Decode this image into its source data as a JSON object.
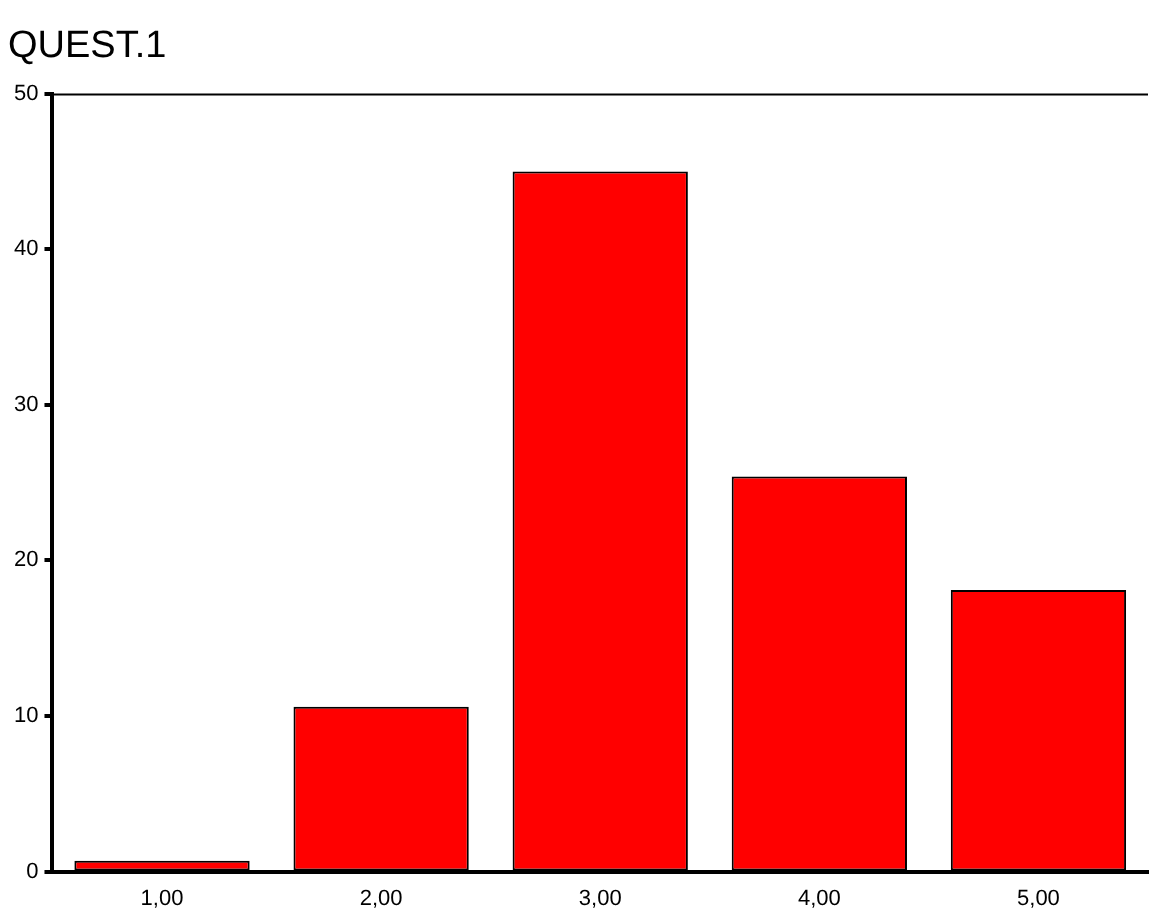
{
  "chart_data": {
    "type": "bar",
    "title": "QUEST.1",
    "categories": [
      "1,00",
      "2,00",
      "3,00",
      "4,00",
      "5,00"
    ],
    "values": [
      0.7,
      10.6,
      45,
      25.4,
      18.1
    ],
    "color": "#ff0000",
    "ylim": [
      0,
      50
    ],
    "yticks": [
      0,
      10,
      20,
      30,
      40,
      50
    ],
    "grid": false,
    "legend": false
  }
}
